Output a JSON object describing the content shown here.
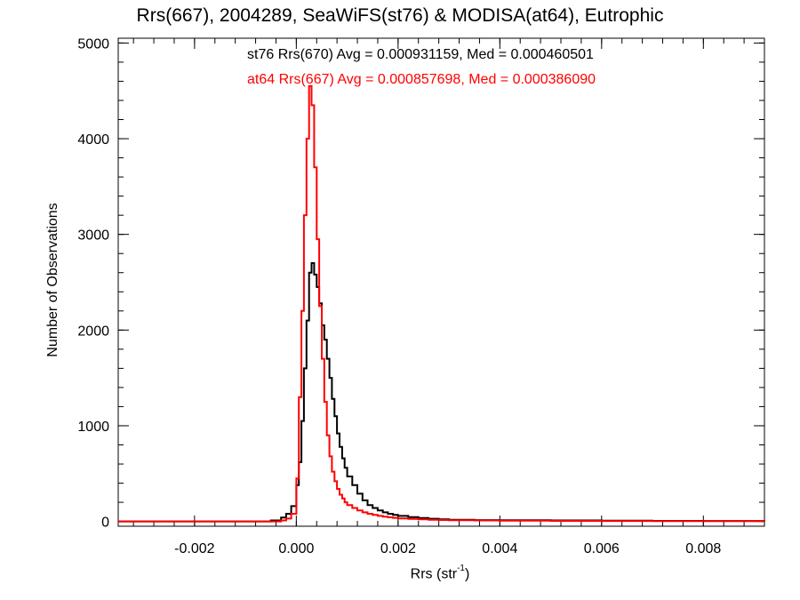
{
  "chart_data": {
    "type": "line",
    "title": "Rrs(667), 2004289, SeaWiFS(st76) & MODISA(at64), Eutrophic",
    "xlabel": {
      "main": "Rrs (str",
      "superscript": "-1",
      "close": ")"
    },
    "ylabel": "Number of Observations",
    "xlim": [
      -0.0035,
      0.0092
    ],
    "ylim": [
      -50,
      5050
    ],
    "xticks": [
      {
        "value": -0.002,
        "label": "-0.002"
      },
      {
        "value": 0.0,
        "label": "0.000"
      },
      {
        "value": 0.002,
        "label": "0.002"
      },
      {
        "value": 0.004,
        "label": "0.004"
      },
      {
        "value": 0.006,
        "label": "0.006"
      },
      {
        "value": 0.008,
        "label": "0.008"
      }
    ],
    "yticks": [
      {
        "value": 0,
        "label": "0"
      },
      {
        "value": 1000,
        "label": "1000"
      },
      {
        "value": 2000,
        "label": "2000"
      },
      {
        "value": 3000,
        "label": "3000"
      },
      {
        "value": 4000,
        "label": "4000"
      },
      {
        "value": 5000,
        "label": "5000"
      }
    ],
    "annotations": [
      {
        "text": "st76 Rrs(670) Avg = 0.000931159, Med = 0.000460501",
        "color": "#000000"
      },
      {
        "text": "at64 Rrs(667) Avg = 0.000857698, Med = 0.000386090",
        "color": "#ff0000"
      }
    ],
    "series": [
      {
        "color": "#000000",
        "x": [
          -0.0035,
          -0.0005,
          -0.0003,
          -0.0002,
          -0.0001,
          0.0,
          5e-05,
          0.0001,
          0.00015,
          0.0002,
          0.00025,
          0.0003,
          0.00035,
          0.0004,
          0.00045,
          0.0005,
          0.00055,
          0.0006,
          0.00065,
          0.0007,
          0.00075,
          0.0008,
          0.00085,
          0.0009,
          0.00095,
          0.001,
          0.0011,
          0.0012,
          0.0013,
          0.0014,
          0.0015,
          0.0016,
          0.0017,
          0.0018,
          0.0019,
          0.002,
          0.0022,
          0.0024,
          0.0026,
          0.0028,
          0.003,
          0.0035,
          0.004,
          0.005,
          0.006,
          0.007,
          0.008,
          0.0092
        ],
        "y": [
          0,
          10,
          40,
          80,
          160,
          380,
          620,
          1050,
          1600,
          2100,
          2600,
          2700,
          2580,
          2450,
          2280,
          2050,
          1900,
          1700,
          1500,
          1280,
          1100,
          920,
          780,
          660,
          560,
          470,
          380,
          290,
          220,
          170,
          140,
          115,
          95,
          80,
          68,
          58,
          45,
          36,
          28,
          22,
          18,
          14,
          12,
          10,
          8,
          6,
          5,
          3
        ]
      },
      {
        "color": "#ff0000",
        "x": [
          -0.0035,
          -0.0003,
          -0.0002,
          -0.0001,
          0.0,
          5e-05,
          0.0001,
          0.00015,
          0.0002,
          0.00025,
          0.0003,
          0.00035,
          0.0004,
          0.00045,
          0.0005,
          0.00055,
          0.0006,
          0.00065,
          0.0007,
          0.00075,
          0.0008,
          0.00085,
          0.0009,
          0.00095,
          0.001,
          0.0011,
          0.0012,
          0.0013,
          0.0014,
          0.0015,
          0.0016,
          0.0017,
          0.0018,
          0.0019,
          0.002,
          0.0022,
          0.0024,
          0.0026,
          0.0028,
          0.003,
          0.0035,
          0.004,
          0.005,
          0.006,
          0.007,
          0.008,
          0.0092
        ],
        "y": [
          0,
          10,
          30,
          80,
          450,
          1300,
          2200,
          3200,
          4000,
          4550,
          4350,
          3700,
          2950,
          2250,
          1700,
          1250,
          900,
          680,
          520,
          420,
          340,
          280,
          240,
          200,
          170,
          140,
          115,
          95,
          80,
          68,
          58,
          50,
          43,
          37,
          32,
          26,
          22,
          18,
          15,
          12,
          10,
          8,
          6,
          5,
          4,
          3,
          2
        ]
      }
    ]
  }
}
